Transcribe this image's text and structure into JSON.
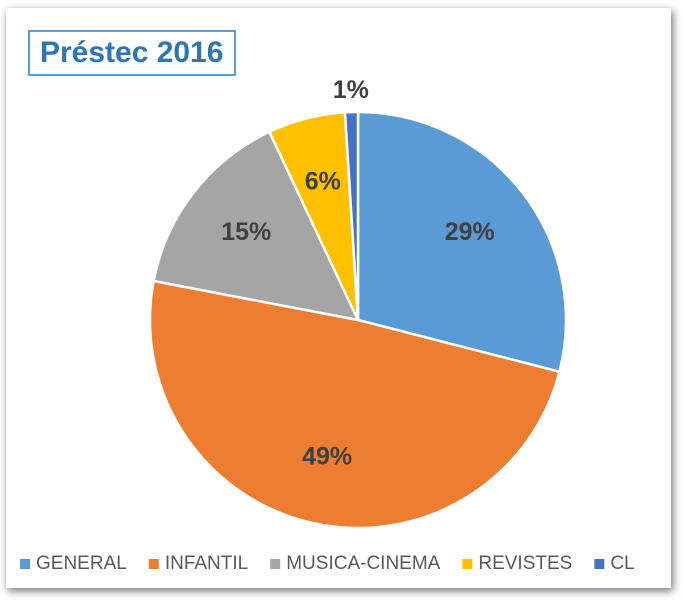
{
  "chart_data": {
    "type": "pie",
    "title": "Préstec 2016",
    "categories": [
      "GENERAL",
      "INFANTIL",
      "MUSICA-CINEMA",
      "REVISTES",
      "CL"
    ],
    "values": [
      29,
      49,
      15,
      6,
      1
    ],
    "value_labels": [
      "29%",
      "49%",
      "15%",
      "6%",
      "1%"
    ],
    "colors": [
      "#5b9bd5",
      "#ed7d31",
      "#a5a5a5",
      "#ffc000",
      "#4472c4"
    ],
    "legend": "bottom"
  }
}
